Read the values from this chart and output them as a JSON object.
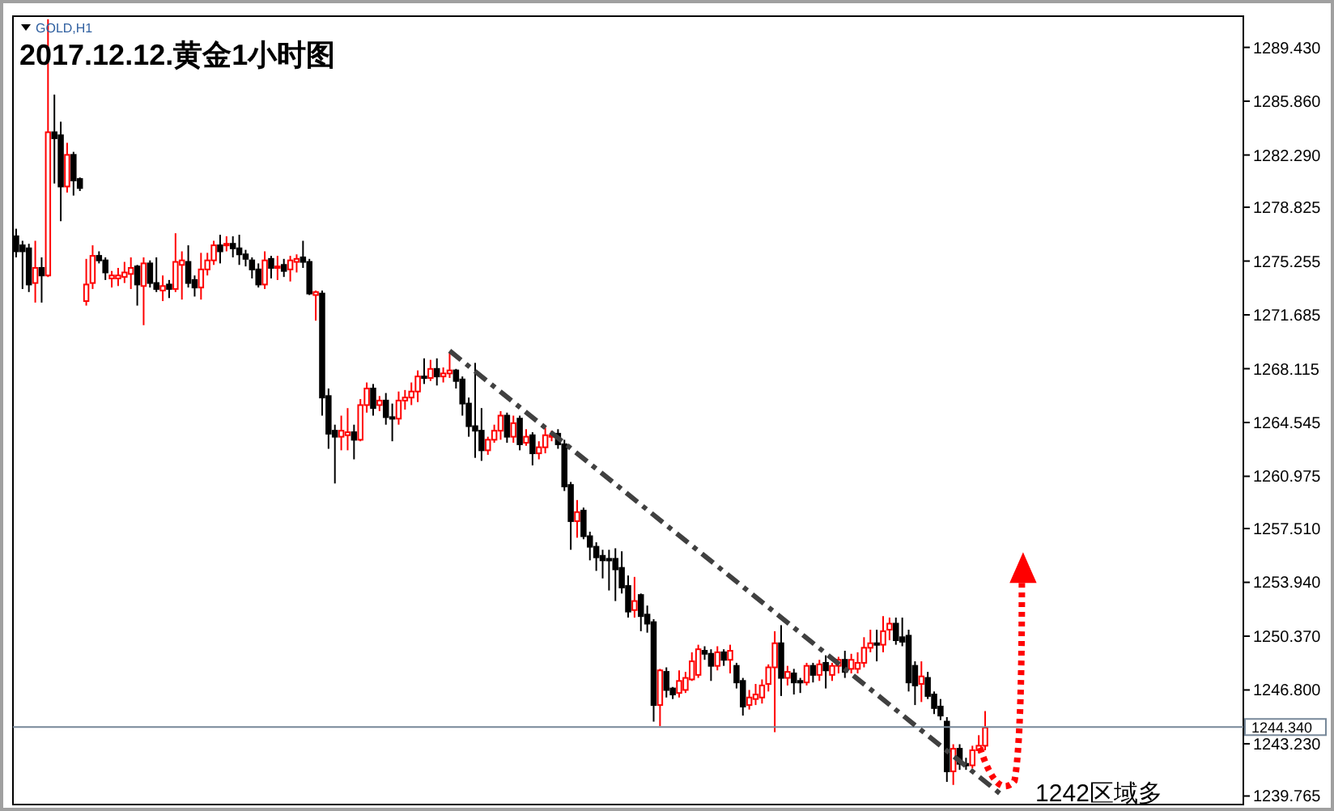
{
  "chart_data": {
    "type": "candlestick",
    "title": "2017.12.12.黄金1小时图",
    "subtitle": "GOLD,H1",
    "categories": [
      null,
      null,
      null,
      null,
      null,
      null,
      null,
      null,
      null,
      null,
      null,
      null,
      null,
      null,
      null,
      null,
      null,
      null,
      null,
      null,
      null,
      null,
      null,
      null,
      null,
      null,
      null,
      null,
      null,
      null,
      null,
      null,
      null,
      null,
      null,
      null,
      null,
      null,
      null,
      null,
      null,
      null,
      null,
      null,
      null,
      null,
      null,
      null,
      null,
      null,
      null,
      null,
      null,
      null,
      null,
      null,
      null,
      null,
      null,
      null,
      null,
      null,
      null,
      null,
      null,
      null,
      null,
      null,
      null,
      null,
      null,
      null,
      null,
      null,
      null,
      null,
      null,
      null,
      null,
      null,
      null,
      null,
      null,
      null,
      null,
      null,
      null,
      null,
      null,
      null,
      null,
      null,
      null,
      null,
      null,
      null,
      null,
      null,
      null,
      null,
      null,
      null,
      null,
      null,
      null,
      null,
      null,
      null,
      null,
      null,
      null,
      null,
      null,
      null,
      null,
      null,
      null,
      null,
      null,
      null,
      null,
      null,
      null,
      null,
      null,
      null,
      null,
      null,
      null,
      null,
      null,
      null,
      null,
      null,
      null,
      null,
      null,
      null,
      null,
      null,
      null,
      null,
      null,
      null,
      null,
      null,
      null,
      null,
      null,
      null,
      null,
      null,
      null,
      null,
      null,
      null,
      null,
      null,
      null,
      null,
      null,
      null,
      null,
      null,
      null,
      null,
      null,
      null,
      null,
      null,
      null,
      null,
      null,
      null,
      null,
      null,
      null,
      null,
      null,
      null,
      null,
      null,
      null,
      null,
      null,
      null,
      null,
      null,
      null,
      null,
      null,
      null,
      null
    ],
    "colors": [
      "#000000",
      "#000000",
      "#000000",
      "#ff0000",
      "#000000",
      "#ff0000",
      "#000000",
      "#000000",
      "#ff0000",
      "#000000",
      "#000000",
      "#ff0000",
      "#ff0000",
      "#000000",
      "#000000",
      "#ff0000",
      "#ff0000",
      "#ff0000",
      "#ff0000",
      "#000000",
      "#ff0000",
      "#000000",
      "#000000",
      "#ff0000",
      "#000000",
      "#ff0000",
      "#ff0000",
      "#000000",
      "#000000",
      "#ff0000",
      "#ff0000",
      "#ff0000",
      "#000000",
      "#ff0000",
      "#000000",
      "#000000",
      "#000000",
      "#000000",
      "#000000",
      "#ff0000",
      "#000000",
      "#ff0000",
      "#000000",
      "#ff0000",
      "#ff0000",
      "#000000",
      "#000000",
      "#ff0000",
      "#000000",
      "#000000",
      "#000000",
      "#ff0000",
      "#ff0000",
      "#000000",
      "#ff0000",
      "#ff0000",
      "#000000",
      "#ff0000",
      "#000000",
      "#000000",
      "#ff0000",
      "#ff0000",
      "#ff0000",
      "#ff0000",
      "#000000",
      "#ff0000",
      "#000000",
      "#ff0000",
      "#ff0000",
      "#000000",
      "#000000",
      "#000000",
      "#000000",
      "#000000",
      "#ff0000",
      "#ff0000",
      "#ff0000",
      "#000000",
      "#ff0000",
      "#000000",
      "#ff0000",
      "#000000",
      "#ff0000",
      "#ff0000",
      "#ff0000",
      "#000000",
      "#000000",
      "#000000",
      "#ff0000",
      "#000000",
      "#000000",
      "#000000",
      "#000000",
      "#000000",
      "#000000",
      "#000000",
      "#000000",
      "#ff0000",
      "#000000",
      "#000000",
      "#000000",
      "#ff0000",
      "#000000",
      "#000000",
      "#ff0000",
      "#ff0000",
      "#ff0000",
      "#ff0000",
      "#000000",
      "#000000",
      "#ff0000",
      "#000000",
      "#ff0000",
      "#000000",
      "#000000",
      "#ff0000",
      "#ff0000",
      "#ff0000",
      "#ff0000",
      "#ff0000",
      "#000000",
      "#ff0000",
      "#000000",
      "#000000",
      "#ff0000",
      "#000000",
      "#ff0000",
      "#000000",
      "#ff0000",
      "#ff0000",
      "#000000",
      "#ff0000",
      "#ff0000",
      "#ff0000",
      "#ff0000",
      "#000000",
      "#ff0000",
      "#ff0000",
      "#000000",
      "#000000",
      "#000000",
      "#000000",
      "#ff0000",
      "#000000",
      "#000000",
      "#000000",
      "#000000",
      "#ff0000",
      "#000000",
      "#000000",
      "#ff0000",
      "#ff0000",
      "#ff0000",
      null,
      null,
      null,
      null,
      null,
      null,
      null,
      null,
      null,
      null,
      null,
      null,
      null,
      null,
      null,
      null,
      null,
      null,
      null,
      null,
      null,
      null,
      null,
      null,
      null,
      null,
      null,
      null,
      null,
      null,
      null,
      null,
      null,
      null,
      null,
      null,
      null,
      null,
      null,
      null
    ],
    "ohlc": [
      [
        1276.9,
        1277.4,
        1275.5,
        1275.9
      ],
      [
        1276.3,
        1276.6,
        1273.4,
        1275.9
      ],
      [
        1276.1,
        1276.4,
        1273.2,
        1273.7
      ],
      [
        1273.8,
        1276.6,
        1272.5,
        1274.8
      ],
      [
        1274.8,
        1275.5,
        1272.5,
        1274.3
      ],
      [
        1274.3,
        1291.3,
        1274.2,
        1283.8
      ],
      [
        1283.8,
        1286.3,
        1280.4,
        1283.4
      ],
      [
        1283.6,
        1284.5,
        1277.9,
        1280.2
      ],
      [
        1280.2,
        1283.1,
        1279.8,
        1282.3
      ],
      [
        1282.3,
        1282.5,
        1279.6,
        1280.6
      ],
      [
        1280.7,
        1280.8,
        1279.9,
        1280.1
      ],
      [
        1272.6,
        1275.4,
        1272.3,
        1273.7
      ],
      [
        1273.8,
        1276.3,
        1273.4,
        1275.6
      ],
      [
        1275.6,
        1275.9,
        1275.1,
        1275.3
      ],
      [
        1275.3,
        1275.5,
        1274.0,
        1274.5
      ],
      [
        1274.1,
        1274.6,
        1273.5,
        1274.3
      ],
      [
        1274.1,
        1274.8,
        1273.6,
        1274.3
      ],
      [
        1274.2,
        1275.2,
        1273.8,
        1274.5
      ],
      [
        1274.4,
        1275.5,
        1273.4,
        1274.8
      ],
      [
        1274.9,
        1275.0,
        1272.3,
        1273.7
      ],
      [
        1273.6,
        1275.5,
        1271.0,
        1275.1
      ],
      [
        1275.1,
        1275.3,
        1273.5,
        1273.8
      ],
      [
        1273.8,
        1275.5,
        1273.2,
        1273.4
      ],
      [
        1273.3,
        1274.3,
        1272.6,
        1273.6
      ],
      [
        1273.7,
        1274.0,
        1272.8,
        1273.4
      ],
      [
        1273.4,
        1277.1,
        1273.2,
        1275.2
      ],
      [
        1275.0,
        1275.9,
        1272.7,
        1275.3
      ],
      [
        1275.2,
        1276.3,
        1273.5,
        1273.8
      ],
      [
        1274.0,
        1274.3,
        1272.9,
        1273.5
      ],
      [
        1273.5,
        1275.8,
        1272.7,
        1274.7
      ],
      [
        1274.7,
        1275.8,
        1274.3,
        1275.3
      ],
      [
        1275.3,
        1276.6,
        1275.0,
        1276.3
      ],
      [
        1276.3,
        1277.0,
        1275.1,
        1275.9
      ],
      [
        1276.3,
        1276.9,
        1275.9,
        1276.4
      ],
      [
        1276.4,
        1276.9,
        1275.5,
        1276.1
      ],
      [
        1276.1,
        1277.0,
        1275.0,
        1275.7
      ],
      [
        1275.7,
        1276.0,
        1274.9,
        1275.4
      ],
      [
        1275.3,
        1275.5,
        1274.1,
        1274.7
      ],
      [
        1274.7,
        1275.1,
        1273.5,
        1273.7
      ],
      [
        1273.7,
        1275.9,
        1273.4,
        1275.3
      ],
      [
        1275.4,
        1275.6,
        1274.1,
        1274.8
      ],
      [
        1274.8,
        1275.6,
        1274.0,
        1274.9
      ],
      [
        1275.0,
        1275.4,
        1274.2,
        1274.6
      ],
      [
        1274.7,
        1275.6,
        1273.9,
        1275.3
      ],
      [
        1275.2,
        1275.7,
        1274.5,
        1275.4
      ],
      [
        1275.5,
        1276.6,
        1274.8,
        1275.2
      ],
      [
        1275.2,
        1275.4,
        1273.0,
        1273.1
      ],
      [
        1273.0,
        1273.3,
        1271.3,
        1273.2
      ],
      [
        1273.1,
        1273.3,
        1265.0,
        1266.2
      ],
      [
        1266.3,
        1266.8,
        1262.8,
        1263.8
      ],
      [
        1264.0,
        1264.4,
        1260.5,
        1263.6
      ],
      [
        1263.6,
        1265.0,
        1262.7,
        1264.0
      ],
      [
        1263.7,
        1265.5,
        1262.7,
        1263.9
      ],
      [
        1263.9,
        1264.4,
        1262.1,
        1263.4
      ],
      [
        1263.4,
        1266.1,
        1263.3,
        1265.7
      ],
      [
        1265.7,
        1267.2,
        1265.2,
        1266.8
      ],
      [
        1266.8,
        1267.1,
        1265.0,
        1265.5
      ],
      [
        1265.7,
        1266.3,
        1265.3,
        1266.0
      ],
      [
        1266.0,
        1266.5,
        1264.4,
        1264.9
      ],
      [
        1264.9,
        1265.8,
        1263.3,
        1264.8
      ],
      [
        1264.8,
        1266.6,
        1264.4,
        1266.0
      ],
      [
        1266.0,
        1266.7,
        1265.4,
        1266.2
      ],
      [
        1266.2,
        1267.2,
        1265.7,
        1266.6
      ],
      [
        1266.6,
        1268.0,
        1265.9,
        1267.6
      ],
      [
        1267.6,
        1268.8,
        1267.1,
        1267.5
      ],
      [
        1267.5,
        1268.7,
        1267.3,
        1268.1
      ],
      [
        1268.1,
        1268.8,
        1267.0,
        1267.6
      ],
      [
        1267.6,
        1268.2,
        1267.2,
        1267.8
      ],
      [
        1267.8,
        1269.2,
        1267.5,
        1268.0
      ],
      [
        1268.0,
        1268.1,
        1266.8,
        1267.3
      ],
      [
        1267.4,
        1267.6,
        1265.0,
        1265.8
      ],
      [
        1265.8,
        1266.2,
        1263.6,
        1264.3
      ],
      [
        1264.3,
        1268.5,
        1262.2,
        1264.0
      ],
      [
        1264.0,
        1265.5,
        1262.0,
        1262.7
      ],
      [
        1262.7,
        1263.6,
        1262.4,
        1263.4
      ],
      [
        1263.4,
        1264.4,
        1263.2,
        1264.0
      ],
      [
        1264.0,
        1265.3,
        1263.4,
        1265.0
      ],
      [
        1265.0,
        1265.2,
        1263.2,
        1263.6
      ],
      [
        1263.6,
        1265.0,
        1263.2,
        1264.5
      ],
      [
        1264.8,
        1265.0,
        1262.7,
        1263.1
      ],
      [
        1263.2,
        1264.1,
        1263.0,
        1263.6
      ],
      [
        1263.7,
        1263.9,
        1261.7,
        1262.5
      ],
      [
        1262.5,
        1263.3,
        1262.1,
        1262.9
      ],
      [
        1262.9,
        1264.2,
        1262.5,
        1263.7
      ],
      [
        1263.6,
        1264.0,
        1263.3,
        1263.7
      ],
      [
        1263.8,
        1264.1,
        1262.8,
        1263.1
      ],
      [
        1263.1,
        1263.4,
        1260.0,
        1260.3
      ],
      [
        1260.4,
        1260.6,
        1256.1,
        1258.0
      ],
      [
        1258.0,
        1259.4,
        1256.9,
        1258.6
      ],
      [
        1258.7,
        1258.9,
        1256.8,
        1257.0
      ],
      [
        1257.0,
        1257.3,
        1255.4,
        1256.3
      ],
      [
        1256.3,
        1256.6,
        1254.7,
        1255.6
      ],
      [
        1255.7,
        1256.1,
        1254.2,
        1255.4
      ],
      [
        1255.5,
        1256.1,
        1253.4,
        1255.4
      ],
      [
        1255.5,
        1256.2,
        1252.7,
        1254.8
      ],
      [
        1254.9,
        1256.0,
        1253.2,
        1253.6
      ],
      [
        1253.7,
        1254.4,
        1251.6,
        1252.0
      ],
      [
        1252.1,
        1254.3,
        1251.6,
        1252.7
      ],
      [
        1253.1,
        1253.2,
        1250.7,
        1251.7
      ],
      [
        1251.8,
        1252.4,
        1250.6,
        1251.2
      ],
      [
        1251.3,
        1251.5,
        1244.7,
        1245.8
      ],
      [
        1245.8,
        1248.2,
        1244.4,
        1248.1
      ],
      [
        1248.0,
        1248.3,
        1246.3,
        1246.8
      ],
      [
        1246.9,
        1247.0,
        1246.2,
        1246.5
      ],
      [
        1246.6,
        1248.1,
        1246.3,
        1247.4
      ],
      [
        1246.8,
        1248.0,
        1246.6,
        1247.6
      ],
      [
        1247.5,
        1249.3,
        1247.4,
        1248.7
      ],
      [
        1247.8,
        1249.8,
        1247.6,
        1249.5
      ],
      [
        1249.4,
        1249.7,
        1248.8,
        1249.2
      ],
      [
        1249.2,
        1249.5,
        1247.4,
        1248.4
      ],
      [
        1248.4,
        1249.7,
        1248.1,
        1249.3
      ],
      [
        1249.3,
        1249.5,
        1248.4,
        1248.8
      ],
      [
        1248.8,
        1249.8,
        1247.9,
        1249.4
      ],
      [
        1248.4,
        1248.6,
        1246.9,
        1247.3
      ],
      [
        1247.4,
        1247.6,
        1245.1,
        1245.7
      ],
      [
        1245.8,
        1246.8,
        1245.5,
        1246.3
      ],
      [
        1246.2,
        1247.2,
        1245.8,
        1246.5
      ],
      [
        1246.3,
        1247.5,
        1245.9,
        1247.1
      ],
      [
        1247.2,
        1248.5,
        1246.7,
        1248.3
      ],
      [
        1248.3,
        1250.7,
        1244.0,
        1249.9
      ],
      [
        1249.9,
        1251.1,
        1246.4,
        1247.6
      ],
      [
        1247.6,
        1248.4,
        1247.1,
        1248.0
      ],
      [
        1247.9,
        1248.2,
        1246.5,
        1247.3
      ],
      [
        1247.4,
        1247.6,
        1246.6,
        1247.3
      ],
      [
        1247.3,
        1248.6,
        1247.1,
        1248.4
      ],
      [
        1248.4,
        1248.6,
        1247.3,
        1247.8
      ],
      [
        1247.8,
        1248.8,
        1247.4,
        1248.5
      ],
      [
        1248.6,
        1249.1,
        1246.9,
        1248.1
      ],
      [
        1247.8,
        1248.6,
        1247.4,
        1248.4
      ],
      [
        1248.4,
        1249.0,
        1247.9,
        1248.8
      ],
      [
        1248.8,
        1249.4,
        1247.6,
        1248.0
      ],
      [
        1248.2,
        1249.2,
        1247.9,
        1248.8
      ],
      [
        1248.2,
        1249.3,
        1247.9,
        1248.6
      ],
      [
        1248.6,
        1250.3,
        1248.3,
        1249.6
      ],
      [
        1249.6,
        1250.8,
        1249.3,
        1249.9
      ],
      [
        1249.9,
        1250.8,
        1248.7,
        1249.8
      ],
      [
        1249.8,
        1251.7,
        1249.3,
        1250.7
      ],
      [
        1250.8,
        1251.6,
        1250.1,
        1251.2
      ],
      [
        1251.2,
        1251.6,
        1249.8,
        1250.1
      ],
      [
        1250.3,
        1251.6,
        1249.7,
        1250.0
      ],
      [
        1250.4,
        1250.8,
        1246.7,
        1247.3
      ],
      [
        1248.4,
        1248.7,
        1245.8,
        1247.1
      ],
      [
        1247.2,
        1248.7,
        1246.0,
        1247.7
      ],
      [
        1247.6,
        1248.0,
        1246.2,
        1246.4
      ],
      [
        1246.5,
        1246.7,
        1245.2,
        1245.6
      ],
      [
        1245.7,
        1246.2,
        1244.8,
        1245.1
      ],
      [
        1244.7,
        1245.0,
        1240.7,
        1241.4
      ],
      [
        1241.4,
        1243.2,
        1240.5,
        1242.9
      ],
      [
        1242.9,
        1243.2,
        1241.5,
        1241.9
      ],
      [
        1241.9,
        1242.3,
        1241.5,
        1241.8
      ],
      [
        1241.8,
        1243.1,
        1241.6,
        1242.8
      ],
      [
        1242.8,
        1243.8,
        1242.6,
        1243.1
      ],
      [
        1243.1,
        1245.4,
        1242.8,
        1244.3
      ],
      null,
      null,
      null,
      null,
      null,
      null,
      null,
      null,
      null,
      null,
      null,
      null,
      null,
      null,
      null,
      null,
      null,
      null,
      null,
      null,
      null,
      null,
      null,
      null,
      null,
      null,
      null,
      null,
      null,
      null,
      null,
      null,
      null,
      null,
      null,
      null,
      null,
      null,
      null,
      null
    ],
    "series": [
      {
        "type": "line",
        "color": "#404040",
        "line_style": "dashdot",
        "values": [
          null,
          null,
          null,
          null,
          null,
          null,
          null,
          null,
          null,
          null,
          null,
          null,
          null,
          null,
          null,
          null,
          null,
          null,
          null,
          null,
          null,
          null,
          null,
          null,
          null,
          null,
          null,
          null,
          null,
          null,
          null,
          null,
          null,
          null,
          null,
          null,
          null,
          null,
          null,
          null,
          null,
          null,
          null,
          null,
          null,
          null,
          null,
          null,
          null,
          null,
          null,
          null,
          null,
          null,
          null,
          null,
          null,
          null,
          null,
          null,
          null,
          null,
          null,
          null,
          null,
          null,
          null,
          null,
          1269.3,
          null,
          null,
          null,
          null,
          null,
          null,
          null,
          null,
          null,
          null,
          null,
          null,
          null,
          null,
          null,
          null,
          null,
          null,
          null,
          null,
          null,
          null,
          null,
          null,
          null,
          null,
          null,
          null,
          null,
          null,
          null,
          null,
          null,
          null,
          null,
          null,
          null,
          null,
          null,
          null,
          null,
          null,
          null,
          null,
          null,
          null,
          null,
          null,
          null,
          null,
          null,
          null,
          null,
          null,
          null,
          null,
          null,
          null,
          null,
          null,
          null,
          null,
          null,
          null,
          null,
          null,
          null,
          null,
          null,
          null,
          null,
          null,
          null,
          null,
          null,
          null,
          null,
          null,
          null,
          null,
          null,
          null,
          null,
          null,
          null,
          null,
          1239.7,
          null,
          null,
          null,
          null,
          null,
          null,
          null,
          null,
          null,
          null,
          null,
          null,
          null,
          null,
          null,
          null,
          null,
          null,
          null,
          null,
          null,
          null,
          null,
          null,
          null,
          null,
          null,
          null,
          null,
          null,
          null,
          null,
          null,
          null,
          null,
          null,
          null
        ]
      }
    ],
    "ylim": [
      1239.2,
      1291.5
    ],
    "yticks": [
      {
        "value": 1289.43,
        "label": "1289.430"
      },
      {
        "value": 1285.86,
        "label": "1285.860"
      },
      {
        "value": 1282.29,
        "label": "1282.290"
      },
      {
        "value": 1278.825,
        "label": "1278.825"
      },
      {
        "value": 1275.255,
        "label": "1275.255"
      },
      {
        "value": 1271.685,
        "label": "1271.685"
      },
      {
        "value": 1268.115,
        "label": "1268.115"
      },
      {
        "value": 1264.545,
        "label": "1264.545"
      },
      {
        "value": 1260.975,
        "label": "1260.975"
      },
      {
        "value": 1257.51,
        "label": "1257.510"
      },
      {
        "value": 1253.94,
        "label": "1253.940"
      },
      {
        "value": 1250.37,
        "label": "1250.370"
      },
      {
        "value": 1246.8,
        "label": "1246.800"
      },
      {
        "value": 1243.23,
        "label": "1243.230"
      },
      {
        "value": 1239.765,
        "label": "1239.765"
      }
    ],
    "ref_lines": [
      {
        "axis": "y",
        "value": 1244.34,
        "label": "1244.340",
        "color": "#778899"
      }
    ],
    "annotations": [
      "1242区域多"
    ],
    "tick_labels": "y"
  }
}
